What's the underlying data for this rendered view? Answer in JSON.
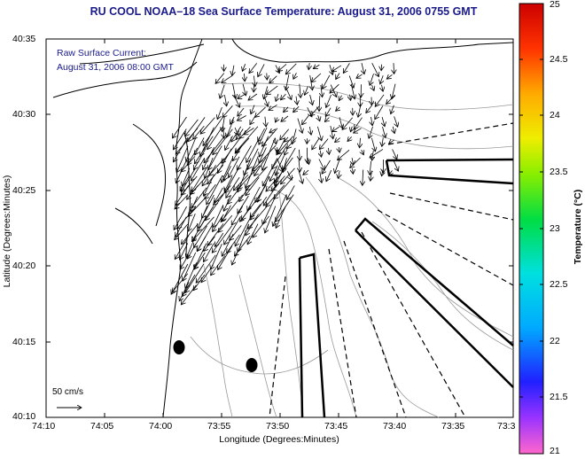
{
  "title": "RU COOL  NOAA–18  Sea Surface Temperature:  August 31, 2006 0755 GMT",
  "annotation": {
    "line1": "Raw Surface Current:",
    "line2": "August 31, 2006 08:00 GMT"
  },
  "axes": {
    "xlabel": "Longitude (Degrees:Minutes)",
    "ylabel": "Latitude (Degrees:Minutes)",
    "xticks": [
      "74:10",
      "74:05",
      "74:00",
      "73:55",
      "73:50",
      "73:45",
      "73:40",
      "73:35",
      "73:3"
    ],
    "yticks": [
      "40:35",
      "40:30",
      "40:25",
      "40:20",
      "40:15",
      "40:10"
    ]
  },
  "colorbar": {
    "label": "Temperature (°C)",
    "ticks": [
      "25",
      "24.5",
      "24",
      "23.5",
      "23",
      "22.5",
      "22",
      "21.5",
      "21"
    ]
  },
  "scale": {
    "label": "50 cm/s"
  },
  "colors": {
    "title": "#1a1a8c",
    "land": "#ffffff",
    "contour": "#999999"
  }
}
